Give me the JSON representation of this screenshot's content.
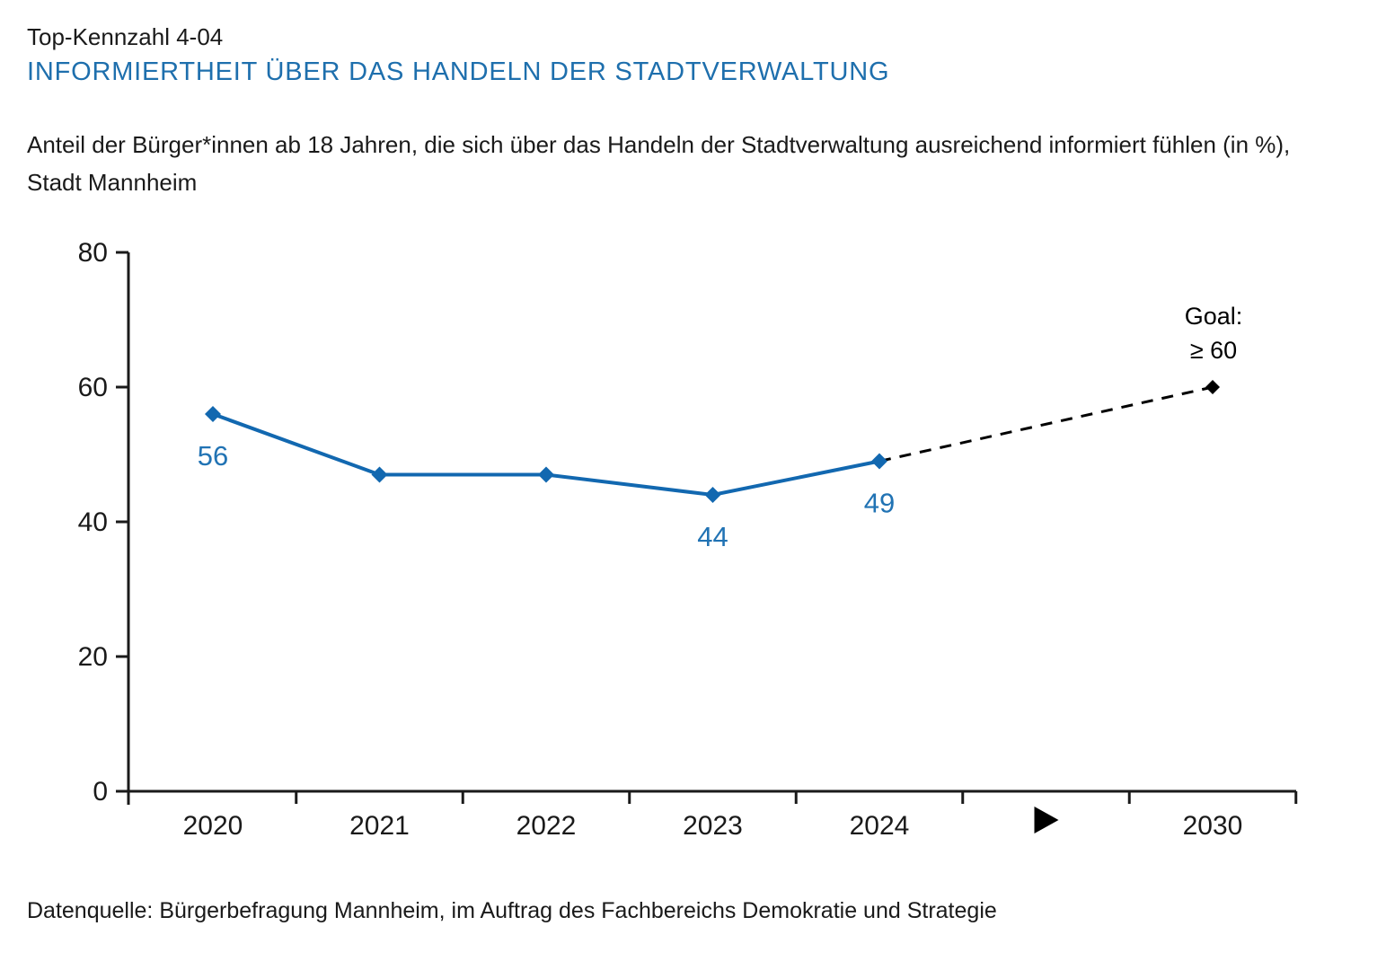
{
  "header": {
    "kicker": "Top-Kennzahl 4-04",
    "title": "INFORMIERTHEIT ÜBER DAS HANDELN DER STADTVERWALTUNG",
    "subtitle_line1": "Anteil der Bürger*innen ab 18 Jahren, die sich über das Handeln der Stadtverwaltung ausreichend informiert fühlen (in %),",
    "subtitle_line2": "Stadt Mannheim"
  },
  "footer": {
    "source": "Datenquelle: Bürgerbefragung Mannheim, im Auftrag des Fachbereichs Demokratie und Strategie"
  },
  "colors": {
    "title_blue": "#1e6fad",
    "line_blue": "#1268b0",
    "data_label_blue": "#2173b4",
    "axis_black": "#1a1a1a",
    "goal_black": "#000000"
  },
  "chart_data": {
    "type": "line",
    "title": "Informiertheit über das Handeln der Stadtverwaltung (in %)",
    "xlabel": "",
    "ylabel": "",
    "ylim": [
      0,
      80
    ],
    "yticks": [
      0,
      20,
      40,
      60,
      80
    ],
    "x_slots": [
      "2020",
      "2021",
      "2022",
      "2023",
      "2024",
      "▶",
      "2030"
    ],
    "axis_break_marker": "▶",
    "grid": false,
    "legend": "none",
    "series": [
      {
        "name": "Anteil informiert (%)",
        "points": [
          {
            "x": "2020",
            "y": 56,
            "label": "56"
          },
          {
            "x": "2021",
            "y": 47,
            "label": ""
          },
          {
            "x": "2022",
            "y": 47,
            "label": ""
          },
          {
            "x": "2023",
            "y": 44,
            "label": "44"
          },
          {
            "x": "2024",
            "y": 49,
            "label": "49"
          }
        ]
      }
    ],
    "goal": {
      "x": "2030",
      "y": 60,
      "label_line1": "Goal:",
      "label_line2": "≥ 60",
      "connector_from": "2024",
      "connector_style": "dashed"
    }
  }
}
